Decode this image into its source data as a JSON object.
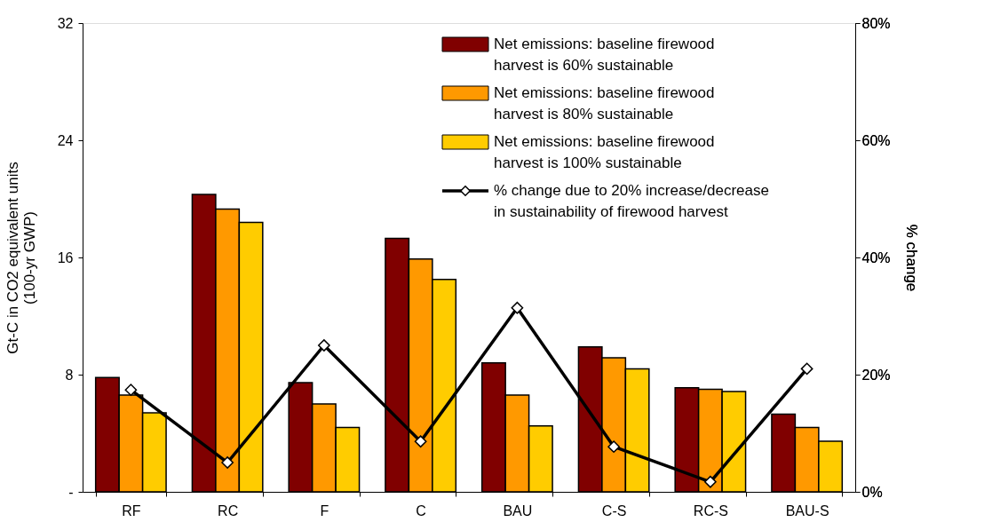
{
  "chart_data": {
    "type": "bar",
    "ylabel": "Gt-C in CO2 equivalent units\n(100-yr GWP)",
    "y2label": "% change",
    "categories": [
      "RF",
      "RC",
      "F",
      "C",
      "BAU",
      "C-S",
      "RC-S",
      "BAU-S"
    ],
    "series": [
      {
        "name": "Net emissions: baseline firewood harvest is 60% sustainable",
        "color": "#800000",
        "values": [
          7.8,
          20.3,
          7.45,
          17.3,
          8.8,
          9.9,
          7.1,
          5.3
        ]
      },
      {
        "name": "Net emissions: baseline firewood harvest is 80% sustainable",
        "color": "#ff9900",
        "values": [
          6.6,
          19.3,
          6.0,
          15.9,
          6.6,
          9.15,
          7.0,
          4.4
        ]
      },
      {
        "name": "Net emissions: baseline firewood harvest is 100% sustainable",
        "color": "#ffcc00",
        "values": [
          5.4,
          18.4,
          4.4,
          14.5,
          4.5,
          8.4,
          6.85,
          3.45
        ]
      },
      {
        "name": "% change due to 20% increase/decrease in sustainability of firewood harvest",
        "type": "line",
        "axis": "y2",
        "color": "#000000",
        "marker": "diamond",
        "values": [
          17.4,
          5.0,
          25.0,
          8.6,
          31.4,
          7.7,
          1.7,
          21.0
        ]
      }
    ],
    "ylim": [
      0,
      32
    ],
    "yticks": [
      {
        "value": 0,
        "label": "-"
      },
      8,
      16,
      24,
      32
    ],
    "y2lim": [
      0,
      80
    ],
    "y2ticks": [
      {
        "value": 0,
        "label": "0%"
      },
      {
        "value": 20,
        "label": "20%"
      },
      {
        "value": 40,
        "label": "40%"
      },
      {
        "value": 60,
        "label": "60%"
      },
      {
        "value": 80,
        "label": "80%"
      }
    ],
    "grid": false,
    "legend": "top right"
  }
}
